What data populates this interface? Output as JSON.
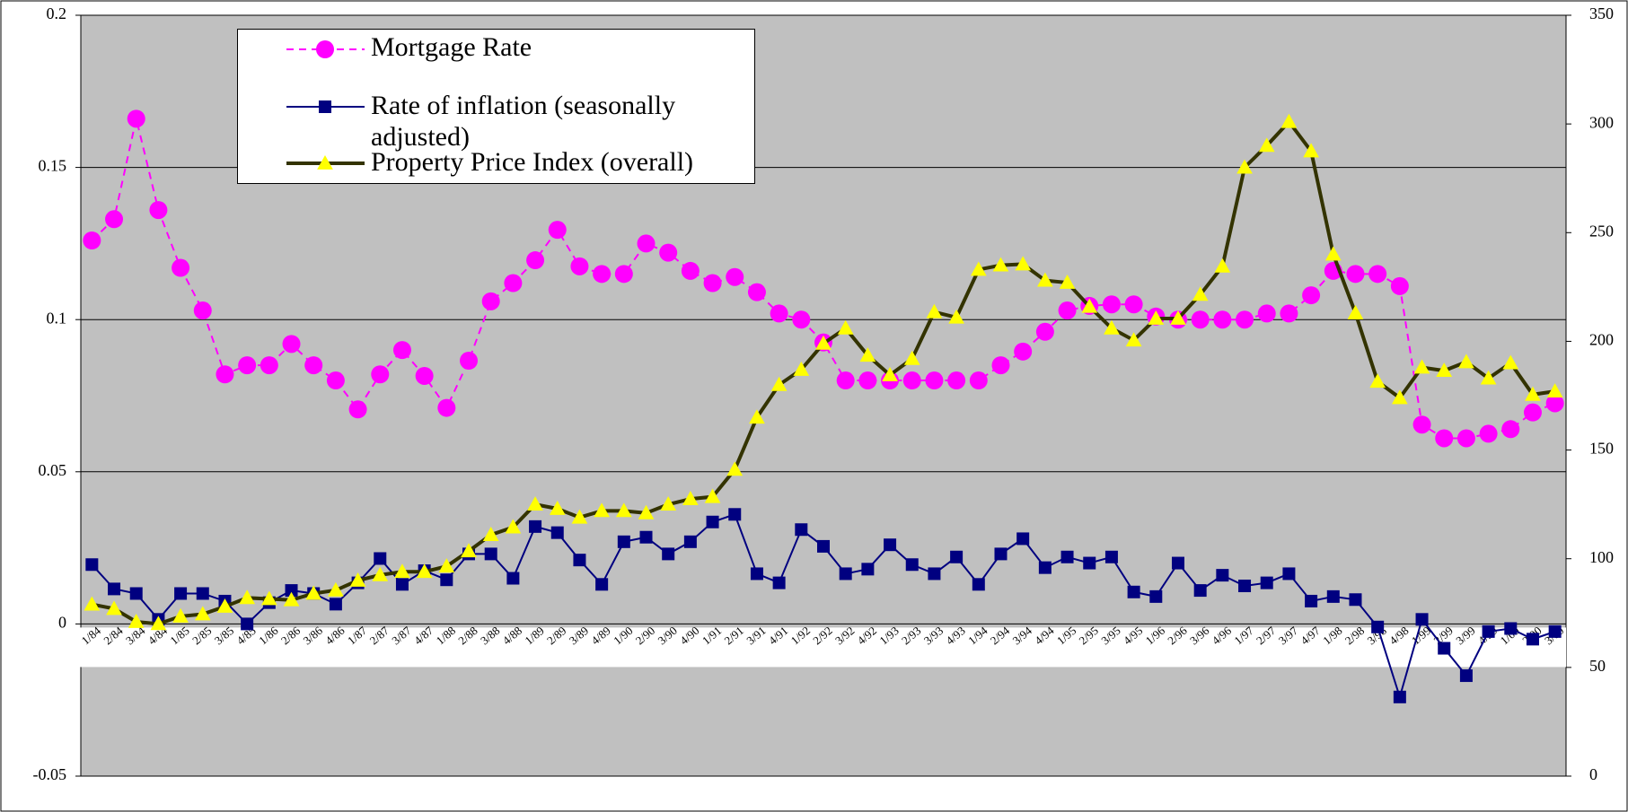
{
  "chart_data": {
    "type": "line",
    "categories": [
      "1/84",
      "2/84",
      "3/84",
      "4/84",
      "1/85",
      "2/85",
      "3/85",
      "4/85",
      "1/86",
      "2/86",
      "3/86",
      "4/86",
      "1/87",
      "2/87",
      "3/87",
      "4/87",
      "1/88",
      "2/88",
      "3/88",
      "4/88",
      "1/89",
      "2/89",
      "3/89",
      "4/89",
      "1/90",
      "2/90",
      "3/90",
      "4/90",
      "1/91",
      "2/91",
      "3/91",
      "4/91",
      "1/92",
      "2/92",
      "3/92",
      "4/92",
      "1/93",
      "2/93",
      "3/93",
      "4/93",
      "1/94",
      "2/94",
      "3/94",
      "4/94",
      "1/95",
      "2/95",
      "3/95",
      "4/95",
      "1/96",
      "2/96",
      "3/96",
      "4/96",
      "1/97",
      "2/97",
      "3/97",
      "4/97",
      "1/98",
      "2/98",
      "3/98",
      "4/98",
      "1/99",
      "2/99",
      "3/99",
      "4/99",
      "1/00",
      "2/00",
      "3/00"
    ],
    "series": [
      {
        "name": "Mortgage Rate",
        "color": "#ff00ff",
        "marker": "circle",
        "dashed": true,
        "values": [
          0.126,
          0.133,
          0.166,
          0.136,
          0.117,
          0.103,
          0.082,
          0.085,
          0.085,
          0.092,
          0.085,
          0.08,
          0.0705,
          0.082,
          0.09,
          0.0815,
          0.071,
          0.0865,
          0.106,
          0.112,
          0.1195,
          0.1295,
          0.1175,
          0.115,
          0.115,
          0.125,
          0.122,
          0.116,
          0.112,
          0.114,
          0.109,
          0.102,
          0.1,
          0.0925,
          0.08,
          0.08,
          0.08,
          0.08,
          0.08,
          0.08,
          0.08,
          0.085,
          0.0895,
          0.096,
          0.103,
          0.1045,
          0.105,
          0.105,
          0.101,
          0.1,
          0.1,
          0.1,
          0.1,
          0.102,
          0.102,
          0.108,
          0.116,
          0.115,
          0.115,
          0.111,
          0.0655,
          0.061,
          0.061,
          0.0625,
          0.064,
          0.0695,
          0.0725
        ]
      },
      {
        "name": "Rate of inflation (seasonally adjusted)",
        "color": "#000080",
        "marker": "square",
        "values": [
          0.0195,
          0.0115,
          0.01,
          0.0015,
          0.01,
          0.01,
          0.0075,
          0.0,
          0.007,
          0.011,
          0.01,
          0.0065,
          0.0135,
          0.0215,
          0.013,
          0.0175,
          0.0145,
          0.023,
          0.023,
          0.015,
          0.032,
          0.03,
          0.021,
          0.013,
          0.027,
          0.0285,
          0.023,
          0.027,
          0.0335,
          0.036,
          0.0165,
          0.0135,
          0.031,
          0.0255,
          0.0165,
          0.018,
          0.026,
          0.0195,
          0.0165,
          0.022,
          0.013,
          0.023,
          0.028,
          0.0185,
          0.022,
          0.02,
          0.022,
          0.0105,
          0.009,
          0.02,
          0.011,
          0.016,
          0.0125,
          0.0135,
          0.0165,
          0.0075,
          0.009,
          0.008,
          -0.001,
          -0.024,
          0.0015,
          -0.008,
          -0.017,
          -0.0025,
          -0.0015,
          -0.005,
          -0.0025
        ]
      },
      {
        "name": "Property Price Index (overall)",
        "color": "#333300",
        "marker": "triangle",
        "marker_color": "#ffff00",
        "axis": "y2",
        "values": [
          79,
          77,
          71,
          70,
          73.5,
          74.5,
          78,
          82,
          81.5,
          81,
          84,
          85.5,
          90,
          92.5,
          94,
          94,
          96.5,
          103.5,
          111,
          114.5,
          125,
          123,
          119,
          122,
          122,
          121,
          125,
          127.5,
          128.5,
          141,
          165,
          180,
          187,
          199,
          206,
          193.5,
          184.5,
          192,
          213.5,
          211,
          233,
          235,
          235.5,
          228,
          227,
          216,
          206,
          200.5,
          210.5,
          210.5,
          221.5,
          234.5,
          280,
          290,
          301,
          287.5,
          240,
          213,
          181.5,
          174,
          188,
          186.5,
          190.5,
          183,
          190,
          175.5,
          177
        ]
      }
    ],
    "ylim": [
      -0.05,
      0.2
    ],
    "yticks": [
      -0.05,
      0,
      0.05,
      0.1,
      0.15,
      0.2
    ],
    "y2lim": [
      0,
      350
    ],
    "y2ticks": [
      0,
      50,
      100,
      150,
      200,
      250,
      300,
      350
    ],
    "grid": true,
    "legend": "top-left",
    "background": "#c0c0c0"
  }
}
